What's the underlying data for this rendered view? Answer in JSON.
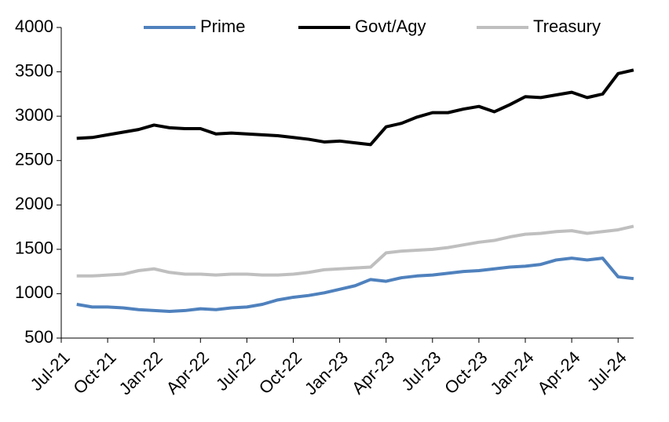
{
  "chart_data": {
    "type": "line",
    "x": [
      "2021-08",
      "2021-09",
      "2021-10",
      "2021-11",
      "2021-12",
      "2022-01",
      "2022-02",
      "2022-03",
      "2022-04",
      "2022-05",
      "2022-06",
      "2022-07",
      "2022-08",
      "2022-09",
      "2022-10",
      "2022-11",
      "2022-12",
      "2023-01",
      "2023-02",
      "2023-03",
      "2023-04",
      "2023-05",
      "2023-06",
      "2023-07",
      "2023-08",
      "2023-09",
      "2023-10",
      "2023-11",
      "2023-12",
      "2024-01",
      "2024-02",
      "2024-03",
      "2024-04",
      "2024-05",
      "2024-06",
      "2024-07",
      "2024-08"
    ],
    "series": [
      {
        "name": "Prime",
        "color": "#4f81bd",
        "values": [
          880,
          850,
          850,
          840,
          820,
          810,
          800,
          810,
          830,
          820,
          840,
          850,
          880,
          930,
          960,
          980,
          1010,
          1050,
          1090,
          1160,
          1140,
          1180,
          1200,
          1210,
          1230,
          1250,
          1260,
          1280,
          1300,
          1310,
          1330,
          1380,
          1400,
          1380,
          1400,
          1190,
          1170
        ]
      },
      {
        "name": "Govt/Agy",
        "color": "#000000",
        "values": [
          2750,
          2760,
          2790,
          2820,
          2850,
          2900,
          2870,
          2860,
          2860,
          2800,
          2810,
          2800,
          2790,
          2780,
          2760,
          2740,
          2710,
          2720,
          2700,
          2680,
          2880,
          2920,
          2990,
          3040,
          3040,
          3080,
          3110,
          3050,
          3130,
          3220,
          3210,
          3240,
          3270,
          3210,
          3250,
          3480,
          3520
        ]
      },
      {
        "name": "Treasury",
        "color": "#bfbfbf",
        "values": [
          1200,
          1200,
          1210,
          1220,
          1260,
          1280,
          1240,
          1220,
          1220,
          1210,
          1220,
          1220,
          1210,
          1210,
          1220,
          1240,
          1270,
          1280,
          1290,
          1300,
          1460,
          1480,
          1490,
          1500,
          1520,
          1550,
          1580,
          1600,
          1640,
          1670,
          1680,
          1700,
          1710,
          1680,
          1700,
          1720,
          1760
        ]
      }
    ],
    "xlim": [
      "2021-07",
      "2024-08"
    ],
    "xticks": [
      {
        "value": "2021-07",
        "label": "Jul-21"
      },
      {
        "value": "2021-10",
        "label": "Oct-21"
      },
      {
        "value": "2022-01",
        "label": "Jan-22"
      },
      {
        "value": "2022-04",
        "label": "Apr-22"
      },
      {
        "value": "2022-07",
        "label": "Jul-22"
      },
      {
        "value": "2022-10",
        "label": "Oct-22"
      },
      {
        "value": "2023-01",
        "label": "Jan-23"
      },
      {
        "value": "2023-04",
        "label": "Apr-23"
      },
      {
        "value": "2023-07",
        "label": "Jul-23"
      },
      {
        "value": "2023-10",
        "label": "Oct-23"
      },
      {
        "value": "2024-01",
        "label": "Jan-24"
      },
      {
        "value": "2024-04",
        "label": "Apr-24"
      },
      {
        "value": "2024-07",
        "label": "Jul-24"
      }
    ],
    "ylim": [
      500,
      4000
    ],
    "yticks": [
      500,
      1000,
      1500,
      2000,
      2500,
      3000,
      3500,
      4000
    ],
    "grid": false,
    "legend": "top"
  }
}
